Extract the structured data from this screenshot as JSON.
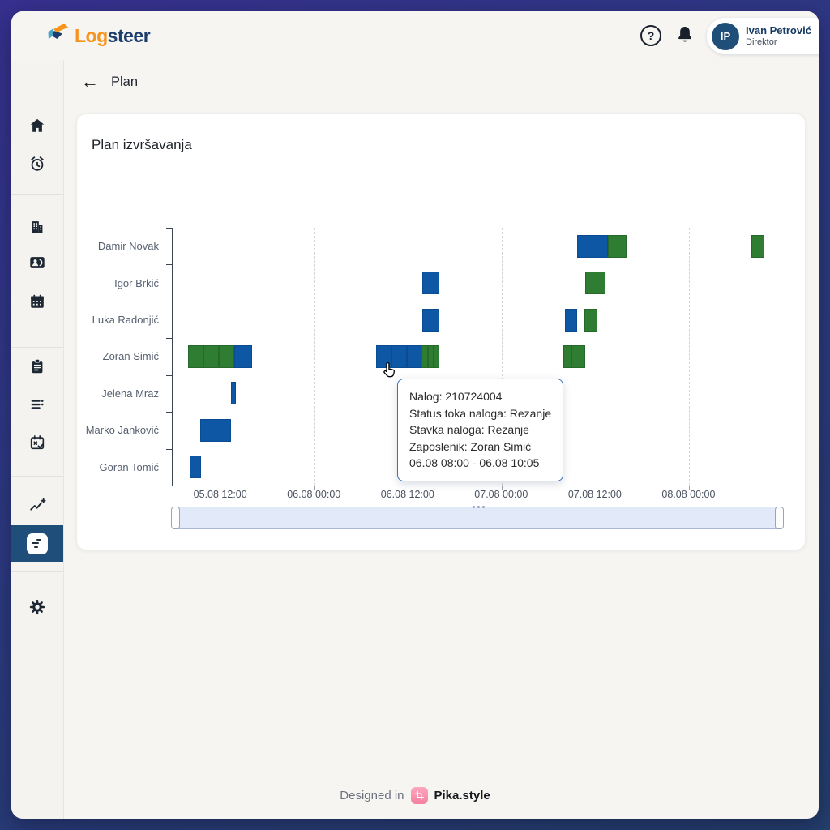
{
  "brand": {
    "logo_orange": "Log",
    "logo_navy": "steer"
  },
  "header": {
    "help_glyph": "?",
    "user": {
      "initials": "IP",
      "name": "Ivan Petrović",
      "role": "Direktor"
    }
  },
  "sidebar": {
    "items": [
      "home",
      "alarm-clock",
      "company",
      "contacts",
      "calendar",
      "tasks-clipboard",
      "orders-list",
      "calendar-status",
      "analytics",
      "plan-gantt",
      "settings"
    ],
    "active": "plan-gantt"
  },
  "nav": {
    "back_label": "Plan"
  },
  "card": {
    "title": "Plan izvršavanja"
  },
  "chart_data": {
    "type": "gantt",
    "title": "Plan izvršavanja",
    "categories": [
      "Damir Novak",
      "Igor Brkić",
      "Luka Radonjić",
      "Zoran Simić",
      "Jelena Mraz",
      "Marko Janković",
      "Goran Tomić"
    ],
    "x_axis": {
      "unit": "hours_since_05.08_00:00",
      "range": [
        5.8,
        83.9
      ],
      "ticks": [
        {
          "t": 12,
          "label": "05.08 12:00"
        },
        {
          "t": 24,
          "label": "06.08 00:00"
        },
        {
          "t": 36,
          "label": "06.08 12:00"
        },
        {
          "t": 48,
          "label": "07.08 00:00"
        },
        {
          "t": 60,
          "label": "07.08 12:00"
        },
        {
          "t": 72,
          "label": "08.08 00:00"
        }
      ],
      "gridlines": [
        24,
        48,
        72
      ]
    },
    "bars": [
      {
        "row": 0,
        "color": "blue",
        "start": 57.6,
        "end": 61.6
      },
      {
        "row": 0,
        "color": "green",
        "start": 61.6,
        "end": 64.0
      },
      {
        "row": 0,
        "color": "green",
        "start": 80.0,
        "end": 81.6
      },
      {
        "row": 1,
        "color": "blue",
        "start": 37.8,
        "end": 40.0
      },
      {
        "row": 1,
        "color": "green",
        "start": 58.7,
        "end": 61.3
      },
      {
        "row": 2,
        "color": "blue",
        "start": 37.8,
        "end": 40.0
      },
      {
        "row": 2,
        "color": "blue",
        "start": 56.1,
        "end": 57.6
      },
      {
        "row": 2,
        "color": "green",
        "start": 58.6,
        "end": 60.2
      },
      {
        "row": 3,
        "color": "green",
        "start": 7.8,
        "end": 9.7
      },
      {
        "row": 3,
        "color": "green",
        "start": 9.7,
        "end": 11.7
      },
      {
        "row": 3,
        "color": "green",
        "start": 11.7,
        "end": 13.7
      },
      {
        "row": 3,
        "color": "blue",
        "start": 13.7,
        "end": 16.0
      },
      {
        "row": 3,
        "color": "blue",
        "start": 31.9,
        "end": 33.8
      },
      {
        "row": 3,
        "color": "blue",
        "start": 33.8,
        "end": 35.8
      },
      {
        "row": 3,
        "color": "blue",
        "start": 35.8,
        "end": 37.7
      },
      {
        "row": 3,
        "color": "green",
        "start": 37.7,
        "end": 38.5
      },
      {
        "row": 3,
        "color": "green",
        "start": 38.5,
        "end": 39.2
      },
      {
        "row": 3,
        "color": "green",
        "start": 39.2,
        "end": 40.0
      },
      {
        "row": 3,
        "color": "green",
        "start": 55.9,
        "end": 56.9
      },
      {
        "row": 3,
        "color": "green",
        "start": 56.9,
        "end": 58.7
      },
      {
        "row": 4,
        "color": "blue",
        "start": 13.3,
        "end": 13.9
      },
      {
        "row": 5,
        "color": "blue",
        "start": 9.3,
        "end": 13.3
      },
      {
        "row": 6,
        "color": "blue",
        "start": 8.0,
        "end": 9.4
      }
    ]
  },
  "tooltip": {
    "lines": [
      "Nalog: 210724004",
      "Status toka naloga: Rezanje",
      "Stavka naloga: Rezanje",
      "Zaposlenik: Zoran Simić",
      "06.08 08:00 - 06.08 10:05"
    ]
  },
  "footer": {
    "designed_in": "Designed in",
    "brand": "Pika.style"
  },
  "colors": {
    "bar_blue": "#0E57A4",
    "bar_blue_border": "#0A4B91",
    "bar_green": "#2F7D33",
    "bar_green_border": "#27682B",
    "active_nav": "#1E4E79",
    "avatar_bg": "#1F4E79",
    "brand_orange": "#F7941D",
    "brand_navy": "#1D3E6B",
    "frame_top": "#37318F",
    "frame_bottom": "#253F6D",
    "tooltip_border": "#3F6EC0",
    "pika_pink": "#F5819F"
  }
}
